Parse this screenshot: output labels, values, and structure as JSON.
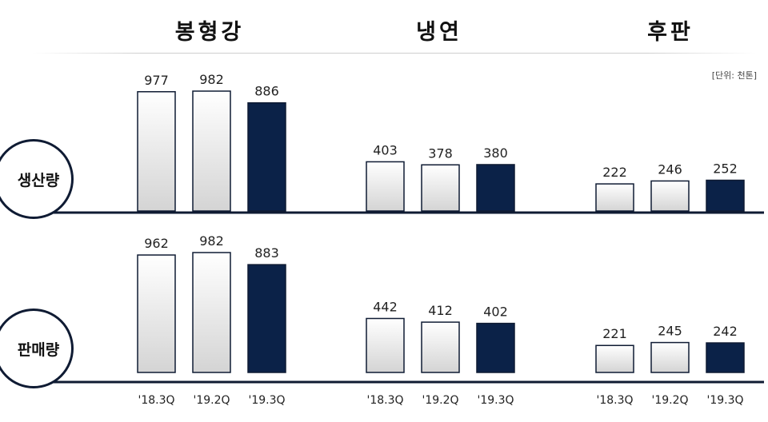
{
  "unit_note": "[단위: 천톤]",
  "groups": [
    "봉형강",
    "냉연",
    "후판"
  ],
  "rows": [
    "생산량",
    "판매량"
  ],
  "chart_data": [
    {
      "type": "bar",
      "row": "생산량",
      "groups": [
        {
          "name": "봉형강",
          "categories": [
            "'18.3Q",
            "'19.2Q",
            "'19.3Q"
          ],
          "values": [
            977,
            982,
            886
          ]
        },
        {
          "name": "냉연",
          "categories": [
            "'18.3Q",
            "'19.2Q",
            "'19.3Q"
          ],
          "values": [
            403,
            378,
            380
          ]
        },
        {
          "name": "후판",
          "categories": [
            "'18.3Q",
            "'19.2Q",
            "'19.3Q"
          ],
          "values": [
            222,
            246,
            252
          ]
        }
      ]
    },
    {
      "type": "bar",
      "row": "판매량",
      "groups": [
        {
          "name": "봉형강",
          "categories": [
            "'18.3Q",
            "'19.2Q",
            "'19.3Q"
          ],
          "values": [
            962,
            982,
            883
          ]
        },
        {
          "name": "냉연",
          "categories": [
            "'18.3Q",
            "'19.2Q",
            "'19.3Q"
          ],
          "values": [
            442,
            412,
            402
          ]
        },
        {
          "name": "후판",
          "categories": [
            "'18.3Q",
            "'19.2Q",
            "'19.3Q"
          ],
          "values": [
            221,
            245,
            242
          ]
        }
      ]
    }
  ],
  "x_tick_labels": [
    "'18.3Q",
    "'19.2Q",
    "'19.3Q"
  ],
  "colors": {
    "highlight": "#0b2248",
    "bar_light_top": "#ffffff",
    "bar_light_bottom": "#d4d4d4",
    "axis": "#0f1b33"
  }
}
